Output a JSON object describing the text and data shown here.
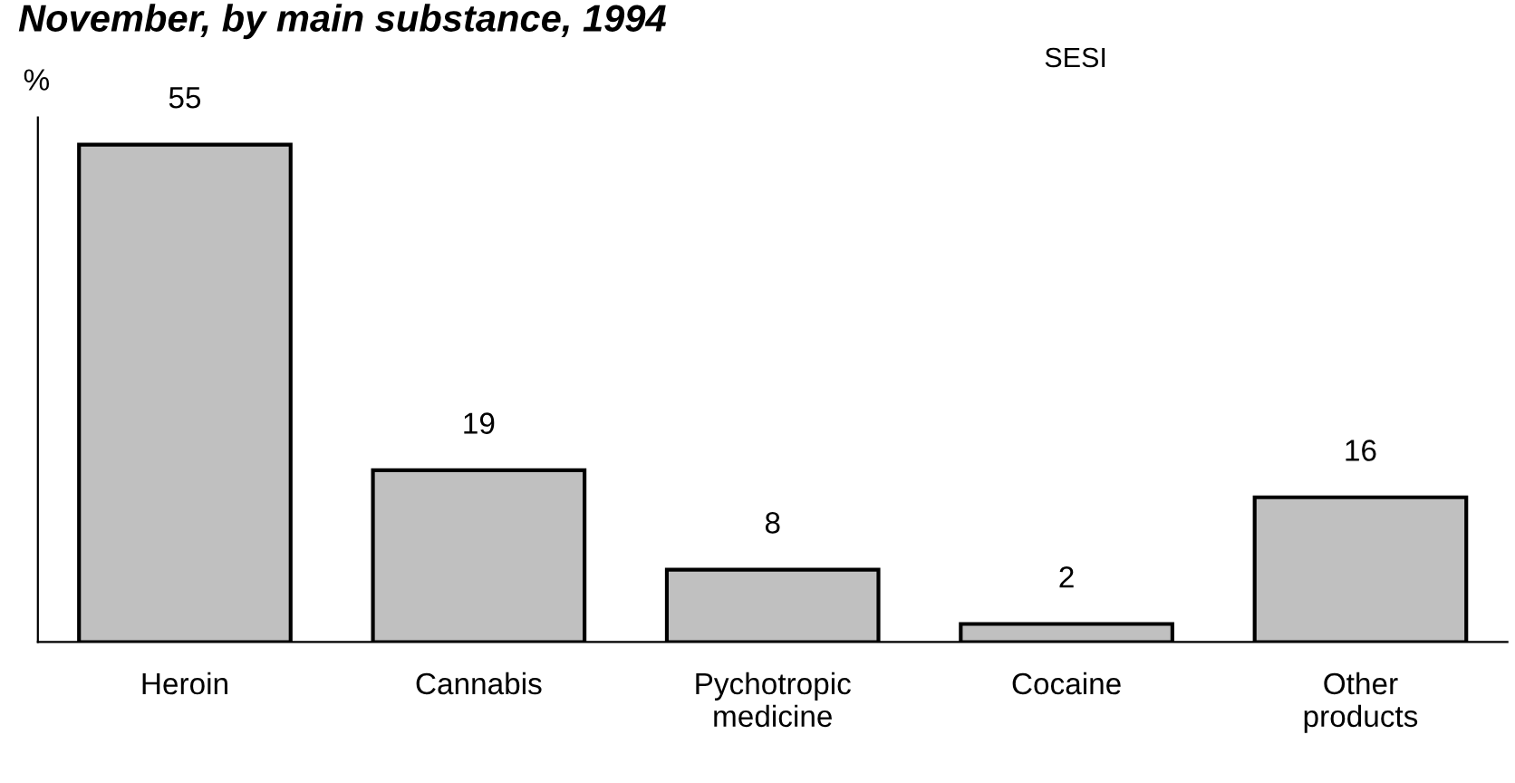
{
  "chart_data": {
    "type": "bar",
    "title": "November, by main substance, 1994",
    "ylabel": "%",
    "annotations": [
      "SESI"
    ],
    "categories": [
      "Heroin",
      "Cannabis",
      "Pychotropic\nmedicine",
      "Cocaine",
      "Other\nproducts"
    ],
    "values": [
      55,
      19,
      8,
      2,
      16
    ],
    "color": "#c0c0c0",
    "ylim": [
      0,
      58
    ],
    "data_labels": true,
    "tick_labels": "x",
    "grid": false,
    "legend": false
  }
}
